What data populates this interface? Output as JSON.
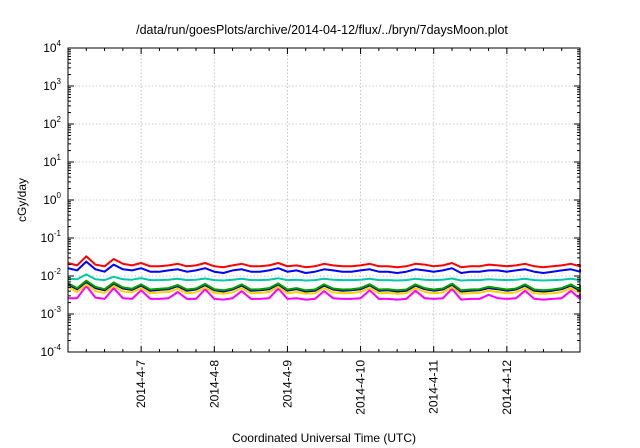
{
  "chart_data": {
    "type": "line",
    "title": "/data/run/goesPlots/archive/2014-04-12/flux/../bryn/7daysMoon.plot",
    "xlabel": "Coordinated Universal Time (UTC)",
    "ylabel": "cGy/day",
    "yscale": "log",
    "ylim": [
      0.0001,
      10000
    ],
    "y_ticks": [
      {
        "base": "10",
        "exp": "-4",
        "value": 0.0001
      },
      {
        "base": "10",
        "exp": "-3",
        "value": 0.001
      },
      {
        "base": "10",
        "exp": "-2",
        "value": 0.01
      },
      {
        "base": "10",
        "exp": "-1",
        "value": 0.1
      },
      {
        "base": "10",
        "exp": "0",
        "value": 1
      },
      {
        "base": "10",
        "exp": "1",
        "value": 10
      },
      {
        "base": "10",
        "exp": "2",
        "value": 100
      },
      {
        "base": "10",
        "exp": "3",
        "value": 1000
      },
      {
        "base": "10",
        "exp": "4",
        "value": 10000
      }
    ],
    "xlim": [
      "2014-04-06 00:00",
      "2014-04-13 00:00"
    ],
    "x_ticks": [
      "2014-4-7",
      "2014-4-8",
      "2014-4-9",
      "2014-4-10",
      "2014-4-11",
      "2014-4-12"
    ],
    "grid": true,
    "legend": "none",
    "x_step_hours": 3,
    "series": [
      {
        "color": "#ff0000",
        "values": [
          0.022,
          0.019,
          0.033,
          0.02,
          0.018,
          0.028,
          0.021,
          0.019,
          0.022,
          0.018,
          0.018,
          0.019,
          0.021,
          0.018,
          0.019,
          0.022,
          0.018,
          0.017,
          0.019,
          0.021,
          0.018,
          0.018,
          0.019,
          0.022,
          0.018,
          0.019,
          0.017,
          0.018,
          0.021,
          0.019,
          0.018,
          0.018,
          0.019,
          0.021,
          0.018,
          0.018,
          0.017,
          0.018,
          0.021,
          0.02,
          0.018,
          0.019,
          0.022,
          0.017,
          0.018,
          0.018,
          0.02,
          0.019,
          0.018,
          0.019,
          0.021,
          0.018,
          0.017,
          0.018,
          0.019,
          0.021,
          0.018,
          0.018,
          0.02,
          0.02
        ]
      },
      {
        "color": "#0000ff",
        "values": [
          0.016,
          0.014,
          0.024,
          0.015,
          0.013,
          0.02,
          0.015,
          0.014,
          0.016,
          0.013,
          0.013,
          0.014,
          0.015,
          0.013,
          0.014,
          0.016,
          0.013,
          0.012,
          0.014,
          0.015,
          0.013,
          0.013,
          0.014,
          0.016,
          0.013,
          0.014,
          0.012,
          0.013,
          0.015,
          0.014,
          0.013,
          0.013,
          0.014,
          0.015,
          0.013,
          0.013,
          0.012,
          0.013,
          0.015,
          0.014,
          0.013,
          0.014,
          0.016,
          0.012,
          0.013,
          0.013,
          0.014,
          0.014,
          0.013,
          0.014,
          0.015,
          0.013,
          0.012,
          0.013,
          0.014,
          0.015,
          0.013,
          0.013,
          0.014,
          0.015
        ]
      },
      {
        "color": "#00c8a8",
        "values": [
          0.0085,
          0.0082,
          0.011,
          0.0082,
          0.0078,
          0.0095,
          0.0082,
          0.008,
          0.0088,
          0.0078,
          0.0078,
          0.008,
          0.0085,
          0.0078,
          0.008,
          0.0086,
          0.0078,
          0.0076,
          0.008,
          0.0085,
          0.0078,
          0.0078,
          0.008,
          0.0087,
          0.0078,
          0.008,
          0.0076,
          0.0078,
          0.0085,
          0.008,
          0.0078,
          0.0078,
          0.008,
          0.0085,
          0.0078,
          0.0078,
          0.0076,
          0.0078,
          0.0085,
          0.008,
          0.0078,
          0.008,
          0.0086,
          0.0076,
          0.0078,
          0.0078,
          0.0082,
          0.008,
          0.0078,
          0.008,
          0.0085,
          0.0078,
          0.0076,
          0.0078,
          0.008,
          0.0085,
          0.0078,
          0.0078,
          0.0082,
          0.0084
        ]
      },
      {
        "color": "#00a000",
        "values": [
          0.0065,
          0.0048,
          0.0075,
          0.0052,
          0.0045,
          0.0068,
          0.005,
          0.0046,
          0.006,
          0.0044,
          0.0046,
          0.0048,
          0.0058,
          0.0044,
          0.0047,
          0.0062,
          0.0045,
          0.0042,
          0.0047,
          0.006,
          0.0044,
          0.0045,
          0.0048,
          0.0064,
          0.0044,
          0.0048,
          0.0042,
          0.0044,
          0.006,
          0.0047,
          0.0044,
          0.0045,
          0.0048,
          0.0061,
          0.0044,
          0.0045,
          0.0042,
          0.0044,
          0.006,
          0.0048,
          0.0044,
          0.0047,
          0.0063,
          0.0042,
          0.0044,
          0.0045,
          0.0052,
          0.0048,
          0.0044,
          0.0047,
          0.006,
          0.0044,
          0.0042,
          0.0044,
          0.0048,
          0.006,
          0.0044,
          0.0045,
          0.0052,
          0.0058
        ]
      },
      {
        "color": "#000080",
        "values": [
          0.006,
          0.0045,
          0.007,
          0.0048,
          0.0042,
          0.0063,
          0.0047,
          0.0043,
          0.0056,
          0.0041,
          0.0043,
          0.0045,
          0.0054,
          0.0041,
          0.0044,
          0.0058,
          0.0042,
          0.0039,
          0.0044,
          0.0056,
          0.0041,
          0.0042,
          0.0045,
          0.006,
          0.0041,
          0.0045,
          0.0039,
          0.0041,
          0.0056,
          0.0044,
          0.0041,
          0.0042,
          0.0045,
          0.0057,
          0.0041,
          0.0042,
          0.0039,
          0.0041,
          0.0056,
          0.0045,
          0.0041,
          0.0044,
          0.0059,
          0.0039,
          0.0041,
          0.0042,
          0.0048,
          0.0045,
          0.0041,
          0.0044,
          0.0056,
          0.0041,
          0.0039,
          0.0041,
          0.0045,
          0.0056,
          0.0041,
          0.0042,
          0.0048,
          0.0054
        ]
      },
      {
        "color": "#ff00ff",
        "values": [
          0.0026,
          0.0026,
          0.0055,
          0.0027,
          0.0025,
          0.0048,
          0.0026,
          0.0025,
          0.0042,
          0.0025,
          0.0025,
          0.0026,
          0.0038,
          0.0025,
          0.0025,
          0.0045,
          0.0025,
          0.0024,
          0.0026,
          0.004,
          0.0025,
          0.0025,
          0.0026,
          0.0047,
          0.0025,
          0.0026,
          0.0024,
          0.0025,
          0.004,
          0.0026,
          0.0025,
          0.0025,
          0.0026,
          0.0042,
          0.0025,
          0.0025,
          0.0024,
          0.0025,
          0.0041,
          0.0026,
          0.0025,
          0.0026,
          0.0046,
          0.0024,
          0.0025,
          0.0025,
          0.0032,
          0.0026,
          0.0025,
          0.0026,
          0.0041,
          0.0025,
          0.0024,
          0.0025,
          0.0026,
          0.0041,
          0.0025,
          0.0025,
          0.0032,
          0.0036
        ]
      },
      {
        "color": "#ffd000",
        "values": [
          0.0052,
          0.0038,
          0.006,
          0.004,
          0.0036,
          0.0055,
          0.0039,
          0.0037,
          0.0048,
          0.0035,
          0.0037,
          0.0038,
          0.0046,
          0.0035,
          0.0037,
          0.005,
          0.0036,
          0.0034,
          0.0037,
          0.0048,
          0.0035,
          0.0036,
          0.0038,
          0.0052,
          0.0035,
          0.0038,
          0.0034,
          0.0035,
          0.0048,
          0.0037,
          0.0035,
          0.0036,
          0.0038,
          0.0049,
          0.0035,
          0.0036,
          0.0034,
          0.0035,
          0.0048,
          0.0038,
          0.0035,
          0.0037,
          0.0051,
          0.0034,
          0.0035,
          0.0036,
          0.0041,
          0.0038,
          0.0035,
          0.0037,
          0.0048,
          0.0035,
          0.0034,
          0.0035,
          0.0038,
          0.0048,
          0.0035,
          0.0036,
          0.0041,
          0.0046
        ]
      }
    ]
  }
}
